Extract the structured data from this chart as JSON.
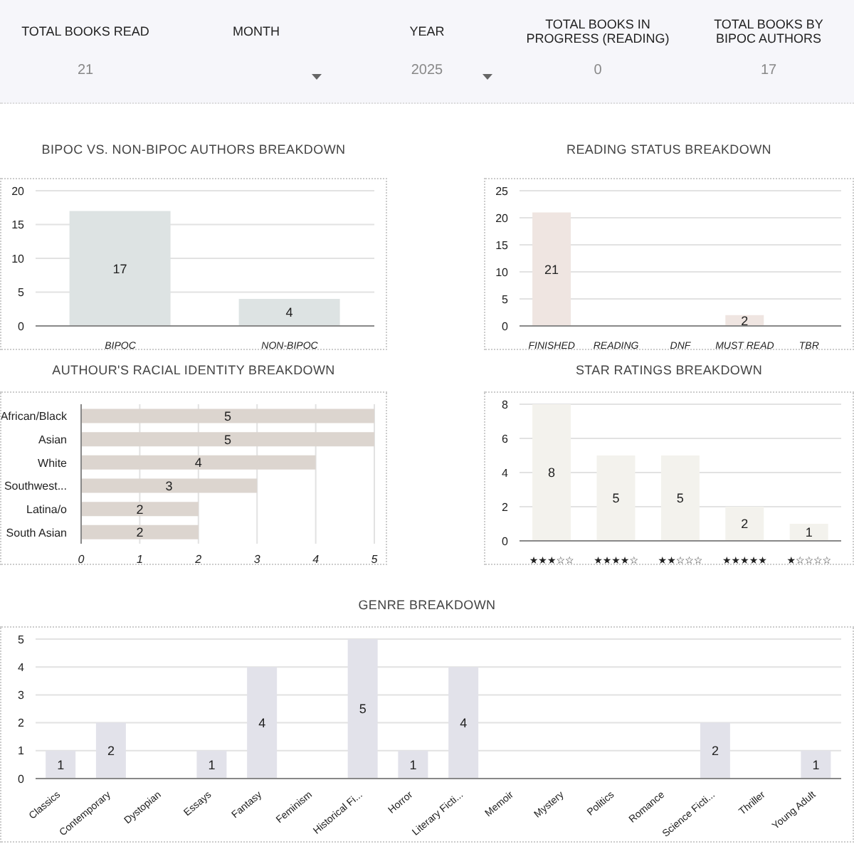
{
  "chart_data": [
    {
      "type": "other",
      "categories": [
        "TOTAL BOOKS READ",
        "MONTH",
        "YEAR",
        "TOTAL BOOKS IN PROGRESS (READING)",
        "TOTAL BOOKS BY BIPOC AUTHORS"
      ],
      "value_labels": [
        "21",
        null,
        "2025",
        "0",
        "17"
      ]
    },
    {
      "type": "bar",
      "title": "BIPOC VS. NON-BIPOC AUTHORS BREAKDOWN",
      "categories": [
        "BIPOC",
        "NON-BIPOC"
      ],
      "values": [
        17,
        4
      ],
      "color": "#dde3e3",
      "ylim": [
        0,
        20
      ],
      "yticks": [
        0,
        5,
        10,
        15,
        20
      ],
      "grid": "y",
      "data_labels": true
    },
    {
      "type": "bar",
      "title": "READING STATUS BREAKDOWN",
      "categories": [
        "FINISHED",
        "READING",
        "DNF",
        "MUST READ",
        "TBR"
      ],
      "values": [
        21,
        0,
        0,
        2,
        0
      ],
      "value_labels": [
        "21",
        null,
        null,
        "2",
        null
      ],
      "color": "#efe5e1",
      "ylim": [
        0,
        25
      ],
      "yticks": [
        0,
        5,
        10,
        15,
        20,
        25
      ],
      "grid": "y"
    },
    {
      "type": "bar",
      "orientation": "horizontal",
      "title": "AUTHOUR'S RACIAL IDENTITY BREAKDOWN",
      "categories": [
        "African/Black",
        "Asian",
        "White",
        "Southwest...",
        "Latina/o",
        "South Asian"
      ],
      "values": [
        5,
        5,
        4,
        3,
        2,
        2
      ],
      "color": "#dcd5cf",
      "xlim": [
        0,
        5
      ],
      "xticks": [
        0,
        1,
        2,
        3,
        4,
        5
      ],
      "grid": "x",
      "data_labels": true
    },
    {
      "type": "bar",
      "title": "STAR RATINGS BREAKDOWN",
      "categories": [
        "★★★☆☆",
        "★★★★☆",
        "★★☆☆☆",
        "★★★★★",
        "★☆☆☆☆"
      ],
      "values": [
        8,
        5,
        5,
        2,
        1
      ],
      "color": "#f3f2ed",
      "ylim": [
        0,
        8
      ],
      "yticks": [
        0,
        2,
        4,
        6,
        8
      ],
      "grid": "y",
      "data_labels": true
    },
    {
      "type": "bar",
      "title": "GENRE BREAKDOWN",
      "categories": [
        "Classics",
        "Contemporary",
        "Dystopian",
        "Essays",
        "Fantasy",
        "Feminism",
        "Historical Fi...",
        "Horror",
        "Literary Ficti...",
        "Memoir",
        "Mystery",
        "Politics",
        "Romance",
        "Science Ficti...",
        "Thriller",
        "Young Adult"
      ],
      "values": [
        1,
        2,
        0,
        1,
        4,
        0,
        5,
        1,
        4,
        0,
        0,
        0,
        0,
        2,
        0,
        1
      ],
      "value_labels": [
        "1",
        "2",
        null,
        "1",
        "4",
        null,
        "5",
        "1",
        "4",
        null,
        null,
        null,
        null,
        "2",
        null,
        "1"
      ],
      "color": "#e2e2ea",
      "ylim": [
        0,
        5
      ],
      "yticks": [
        0,
        1,
        2,
        3,
        4,
        5
      ],
      "grid": "y"
    }
  ]
}
